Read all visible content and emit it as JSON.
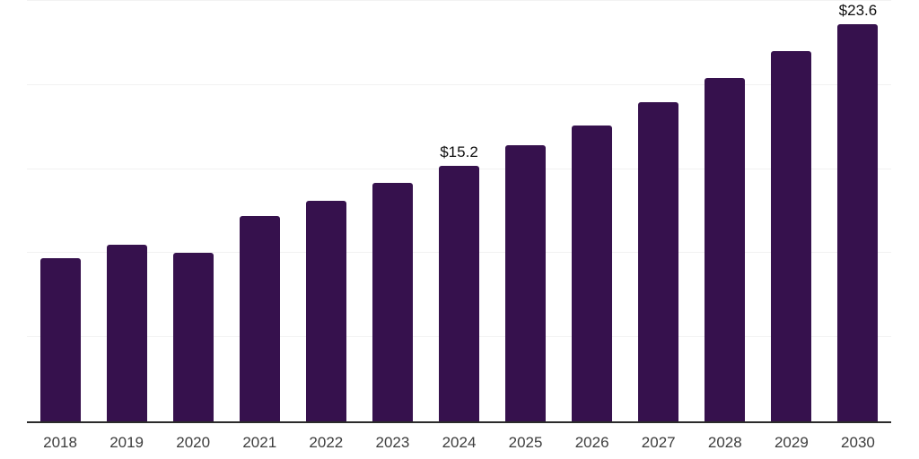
{
  "chart_data": {
    "type": "bar",
    "title": "",
    "xlabel": "",
    "ylabel": "",
    "categories": [
      "2018",
      "2019",
      "2020",
      "2021",
      "2022",
      "2023",
      "2024",
      "2025",
      "2026",
      "2027",
      "2028",
      "2029",
      "2030"
    ],
    "values": [
      9.7,
      10.5,
      10.0,
      12.2,
      13.1,
      14.2,
      15.2,
      16.4,
      17.6,
      19.0,
      20.4,
      22.0,
      23.6
    ],
    "data_labels": [
      "",
      "",
      "",
      "",
      "",
      "",
      "$15.2",
      "",
      "",
      "",
      "",
      "",
      "$23.6"
    ],
    "ylim": [
      0,
      25
    ],
    "gridline_step": 5,
    "grid": true,
    "y_tick_labels_shown": false,
    "legend_position": "none",
    "colors": {
      "bar": "#36114d",
      "axis_line": "#2b2b2b",
      "gridline": "#f2f2f2",
      "x_tick_label": "#3d3d3d",
      "data_label": "#0f0f0f",
      "background": "#ffffff"
    }
  }
}
